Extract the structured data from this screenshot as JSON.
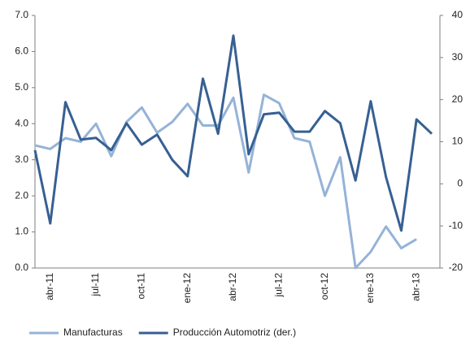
{
  "chart_data": {
    "type": "line",
    "categories": [
      null,
      "abr-11",
      null,
      null,
      "jul-11",
      null,
      null,
      "oct-11",
      null,
      null,
      "ene-12",
      null,
      null,
      "abr-12",
      null,
      null,
      "jul-12",
      null,
      null,
      "oct-12",
      null,
      null,
      "ene-13",
      null,
      null,
      "abr-13",
      null
    ],
    "series": [
      {
        "name": "Manufacturas",
        "color": "#95b3d7",
        "axis": "y",
        "values": [
          3.4,
          3.3,
          3.6,
          3.5,
          4.0,
          3.1,
          4.05,
          4.45,
          3.75,
          4.05,
          4.55,
          3.95,
          3.95,
          4.72,
          2.65,
          4.8,
          4.57,
          3.6,
          3.5,
          2.0,
          3.07,
          0.0,
          0.45,
          1.15,
          0.55,
          0.8,
          null
        ]
      },
      {
        "name": "Producción Automotriz (der.)",
        "color": "#376092",
        "axis": "y2",
        "values": [
          8.0,
          -9.4,
          19.4,
          10.5,
          10.9,
          8.0,
          14.4,
          9.3,
          11.7,
          5.7,
          1.8,
          25.0,
          11.9,
          35.2,
          7.0,
          16.5,
          16.9,
          12.4,
          12.4,
          17.3,
          14.4,
          0.8,
          19.6,
          1.6,
          -11.1,
          15.3,
          11.9
        ]
      }
    ],
    "ylim": [
      0,
      7
    ],
    "yticks": [
      {
        "value": 0,
        "label": "0.0"
      },
      {
        "value": 1,
        "label": "1.0"
      },
      {
        "value": 2,
        "label": "2.0"
      },
      {
        "value": 3,
        "label": "3.0"
      },
      {
        "value": 4,
        "label": "4.0"
      },
      {
        "value": 5,
        "label": "5.0"
      },
      {
        "value": 6,
        "label": "6.0"
      },
      {
        "value": 7,
        "label": "7.0"
      }
    ],
    "y2lim": [
      -20,
      40
    ],
    "y2ticks": [
      -20,
      -10,
      0,
      10,
      20,
      30,
      40
    ],
    "legend": "bottom"
  }
}
